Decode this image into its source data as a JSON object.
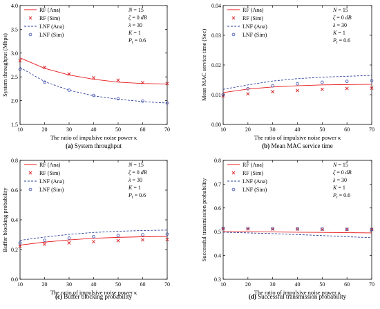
{
  "legend_labels": [
    "RF (Ana)",
    "RF (Sim)",
    "LNF (Ana)",
    "LNF (Sim)"
  ],
  "params": {
    "line1": "N = 15",
    "line2": "ζ = 0 dB",
    "line3": "λ = 30",
    "line4": "K = 1",
    "line5": "Pt = 0.6"
  },
  "colors": {
    "rf": "#e8191c",
    "lnf": "#2b3f9b",
    "rf_sim": "#d3181d",
    "lnf_sim": "#3f4fb0"
  },
  "chart_data": [
    {
      "type": "line",
      "caption_tag": "(a)",
      "caption_text": "System throughput",
      "xlabel": "The ratio of impulsive noise power κ",
      "ylabel": "System throughput (Mbps)",
      "xlim": [
        10,
        70
      ],
      "ylim": [
        1.5,
        4.0
      ],
      "xticks": [
        "10",
        "20",
        "30",
        "40",
        "50",
        "60",
        "70"
      ],
      "yticks": [
        "1.5",
        "2.0",
        "2.5",
        "3.0",
        "3.5",
        "4.0"
      ],
      "x_ana": [
        10,
        20,
        30,
        40,
        50,
        60,
        70
      ],
      "x_sim": [
        10,
        20,
        30,
        40,
        50,
        60,
        70
      ],
      "series": [
        {
          "name": "RF (Ana)",
          "kind": "ana",
          "values": [
            2.9,
            2.68,
            2.54,
            2.45,
            2.39,
            2.36,
            2.35
          ]
        },
        {
          "name": "RF (Sim)",
          "kind": "sim_x",
          "values": [
            2.84,
            2.7,
            2.56,
            2.48,
            2.43,
            2.38,
            2.36
          ]
        },
        {
          "name": "LNF (Ana)",
          "kind": "ana_dash",
          "values": [
            2.7,
            2.4,
            2.22,
            2.1,
            2.03,
            1.98,
            1.95
          ]
        },
        {
          "name": "LNF (Sim)",
          "kind": "sim_o",
          "values": [
            2.66,
            2.39,
            2.22,
            2.11,
            2.04,
            1.99,
            1.95
          ]
        }
      ]
    },
    {
      "type": "line",
      "caption_tag": "(b)",
      "caption_text": "Mean MAC service time",
      "xlabel": "The ratio of impulsive noise power κ",
      "ylabel": "Mean MAC service time (Sec)",
      "xlim": [
        10,
        70
      ],
      "ylim": [
        0.0,
        0.04
      ],
      "xticks": [
        "10",
        "20",
        "30",
        "40",
        "50",
        "60",
        "70"
      ],
      "yticks": [
        "0.00",
        "0.01",
        "0.02",
        "0.03",
        "0.04"
      ],
      "x_ana": [
        10,
        20,
        30,
        40,
        50,
        60,
        70
      ],
      "x_sim": [
        10,
        20,
        30,
        40,
        50,
        60,
        70
      ],
      "series": [
        {
          "name": "RF (Ana)",
          "kind": "ana",
          "values": [
            0.0107,
            0.0119,
            0.0126,
            0.013,
            0.0133,
            0.0134,
            0.0135
          ]
        },
        {
          "name": "RF (Sim)",
          "kind": "sim_x",
          "values": [
            0.0096,
            0.0103,
            0.011,
            0.0114,
            0.0118,
            0.0121,
            0.0122
          ]
        },
        {
          "name": "LNF (Ana)",
          "kind": "ana_dash",
          "values": [
            0.0118,
            0.0133,
            0.0146,
            0.0154,
            0.0159,
            0.0162,
            0.0165
          ]
        },
        {
          "name": "LNF (Sim)",
          "kind": "sim_o",
          "values": [
            0.01,
            0.012,
            0.013,
            0.0137,
            0.0142,
            0.0145,
            0.0147
          ]
        }
      ]
    },
    {
      "type": "line",
      "caption_tag": "(c)",
      "caption_text": "Buffer blocking probability",
      "xlabel": "The ratio of impulsive noise power κ",
      "ylabel": "Buffer blocking probability",
      "xlim": [
        10,
        70
      ],
      "ylim": [
        0.0,
        0.8
      ],
      "xticks": [
        "10",
        "20",
        "30",
        "40",
        "50",
        "60",
        "70"
      ],
      "yticks": [
        "0.0",
        "0.2",
        "0.4",
        "0.6",
        "0.8"
      ],
      "x_ana": [
        10,
        20,
        30,
        40,
        50,
        60,
        70
      ],
      "x_sim": [
        10,
        20,
        30,
        40,
        50,
        60,
        70
      ],
      "series": [
        {
          "name": "RF (Ana)",
          "kind": "ana",
          "values": [
            0.23,
            0.25,
            0.265,
            0.276,
            0.282,
            0.286,
            0.288
          ]
        },
        {
          "name": "RF (Sim)",
          "kind": "sim_x",
          "values": [
            0.222,
            0.236,
            0.245,
            0.253,
            0.26,
            0.265,
            0.268
          ]
        },
        {
          "name": "LNF (Ana)",
          "kind": "ana_dash",
          "values": [
            0.262,
            0.284,
            0.302,
            0.315,
            0.323,
            0.328,
            0.331
          ]
        },
        {
          "name": "LNF (Sim)",
          "kind": "sim_o",
          "values": [
            0.244,
            0.262,
            0.277,
            0.287,
            0.295,
            0.3,
            0.304
          ]
        }
      ]
    },
    {
      "type": "line",
      "caption_tag": "(d)",
      "caption_text": "Successful transmission probability",
      "xlabel": "The ratio of impulsive noise power κ",
      "ylabel": "Successful transmission probability",
      "xlim": [
        10,
        70
      ],
      "ylim": [
        0.3,
        0.8
      ],
      "xticks": [
        "10",
        "20",
        "30",
        "40",
        "50",
        "60",
        "70"
      ],
      "yticks": [
        "0.3",
        "0.4",
        "0.5",
        "0.6",
        "0.7",
        "0.8"
      ],
      "x_ana": [
        10,
        20,
        30,
        40,
        50,
        60,
        70
      ],
      "x_sim": [
        10,
        20,
        30,
        40,
        50,
        60,
        70
      ],
      "series": [
        {
          "name": "RF (Ana)",
          "kind": "ana",
          "values": [
            0.5,
            0.5,
            0.499,
            0.498,
            0.497,
            0.496,
            0.495
          ]
        },
        {
          "name": "RF (Sim)",
          "kind": "sim_x",
          "values": [
            0.512,
            0.512,
            0.511,
            0.511,
            0.51,
            0.51,
            0.51
          ]
        },
        {
          "name": "LNF (Ana)",
          "kind": "ana_dash",
          "values": [
            0.498,
            0.495,
            0.492,
            0.488,
            0.484,
            0.479,
            0.475
          ]
        },
        {
          "name": "LNF (Sim)",
          "kind": "sim_o",
          "values": [
            0.515,
            0.514,
            0.513,
            0.512,
            0.511,
            0.51,
            0.509
          ]
        }
      ]
    }
  ]
}
